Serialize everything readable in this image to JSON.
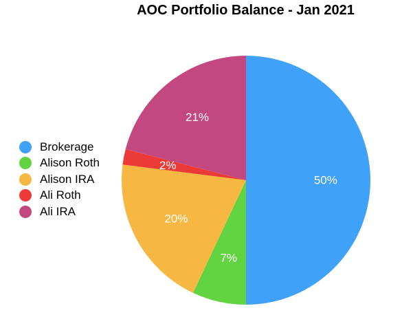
{
  "chart_data": {
    "type": "pie",
    "title": "AOC Portfolio Balance - Jan 2021",
    "legend_position": "left",
    "start_angle": "12 o'clock",
    "direction": "clockwise",
    "slices": [
      {
        "name": "Brokerage",
        "value": 50,
        "label": "50%",
        "color": "#3fa1f7"
      },
      {
        "name": "Alison Roth",
        "value": 7,
        "label": "7%",
        "color": "#62d341"
      },
      {
        "name": "Alison IRA",
        "value": 20,
        "label": "20%",
        "color": "#f6b842"
      },
      {
        "name": "Ali Roth",
        "value": 2,
        "label": "2%",
        "color": "#ec3b36"
      },
      {
        "name": "Ali IRA",
        "value": 21,
        "label": "21%",
        "color": "#c2487f"
      }
    ]
  }
}
